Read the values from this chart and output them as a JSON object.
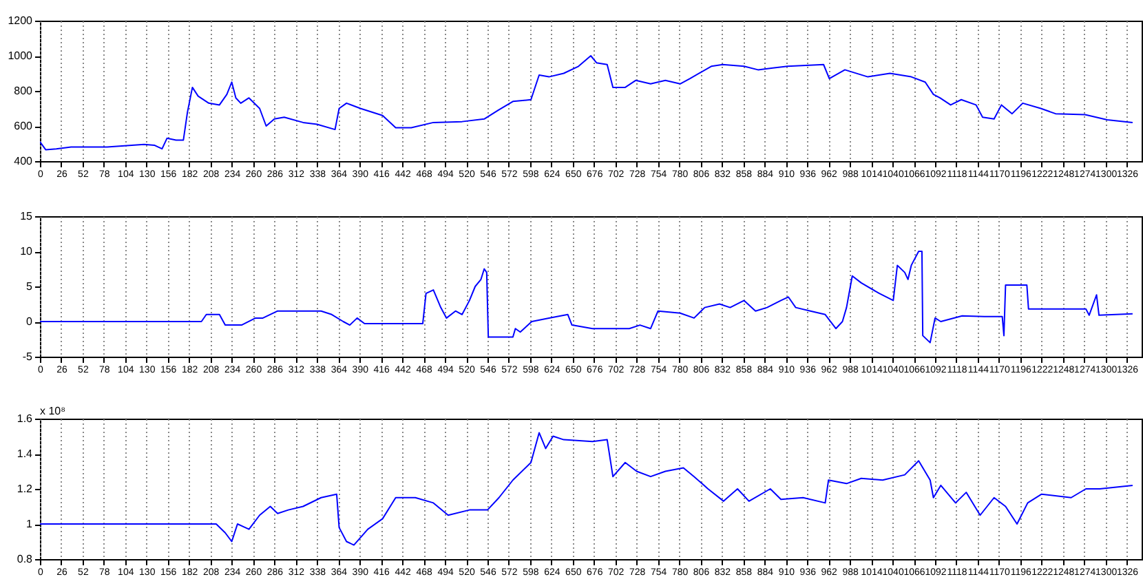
{
  "chart_data": [
    {
      "type": "line",
      "xlim": [
        0,
        1344
      ],
      "xticks": [
        0,
        26,
        52,
        78,
        104,
        130,
        156,
        182,
        208,
        234,
        260,
        286,
        312,
        338,
        364,
        390,
        416,
        442,
        468,
        494,
        520,
        546,
        572,
        598,
        624,
        650,
        676,
        702,
        728,
        754,
        780,
        806,
        832,
        858,
        884,
        910,
        936,
        962,
        988,
        1014,
        1040,
        1066,
        1092,
        1118,
        1144,
        1170,
        1196,
        1222,
        1248,
        1274,
        1300,
        1326
      ],
      "ylim": [
        400,
        1200
      ],
      "yticks": [
        400,
        600,
        800,
        1000,
        1200
      ],
      "grid": "x",
      "x": [
        0,
        7,
        20,
        38,
        82,
        127,
        140,
        149,
        155,
        166,
        175,
        180,
        186,
        193,
        206,
        219,
        228,
        234,
        239,
        245,
        255,
        268,
        276,
        286,
        298,
        321,
        338,
        360,
        365,
        374,
        391,
        418,
        434,
        453,
        480,
        515,
        542,
        559,
        577,
        599,
        609,
        621,
        639,
        657,
        672,
        679,
        692,
        699,
        714,
        727,
        745,
        763,
        781,
        793,
        819,
        833,
        859,
        876,
        894,
        912,
        956,
        963,
        982,
        1010,
        1037,
        1063,
        1080,
        1090,
        1098,
        1111,
        1124,
        1142,
        1150,
        1164,
        1173,
        1186,
        1199,
        1221,
        1239,
        1275,
        1302,
        1333
      ],
      "series": [
        {
          "color": "#0000ff",
          "values": [
            510,
            465,
            470,
            480,
            480,
            495,
            490,
            470,
            530,
            520,
            520,
            680,
            820,
            770,
            730,
            720,
            780,
            850,
            760,
            730,
            760,
            700,
            600,
            640,
            650,
            620,
            610,
            580,
            700,
            730,
            700,
            660,
            590,
            590,
            620,
            625,
            640,
            690,
            740,
            750,
            890,
            880,
            900,
            940,
            1000,
            960,
            950,
            820,
            820,
            860,
            840,
            860,
            840,
            870,
            940,
            950,
            940,
            920,
            930,
            940,
            950,
            870,
            920,
            880,
            900,
            880,
            850,
            780,
            760,
            720,
            750,
            720,
            650,
            640,
            720,
            670,
            730,
            700,
            670,
            665,
            635,
            620
          ]
        }
      ]
    },
    {
      "type": "line",
      "xlim": [
        0,
        1344
      ],
      "xticks": [
        0,
        26,
        52,
        78,
        104,
        130,
        156,
        182,
        208,
        234,
        260,
        286,
        312,
        338,
        364,
        390,
        416,
        442,
        468,
        494,
        520,
        546,
        572,
        598,
        624,
        650,
        676,
        702,
        728,
        754,
        780,
        806,
        832,
        858,
        884,
        910,
        936,
        962,
        988,
        1014,
        1040,
        1066,
        1092,
        1118,
        1144,
        1170,
        1196,
        1222,
        1248,
        1274,
        1300,
        1326
      ],
      "ylim": [
        -5,
        15
      ],
      "yticks": [
        -5,
        0,
        5,
        10,
        15
      ],
      "grid": "x",
      "x": [
        0,
        197,
        203,
        219,
        226,
        232,
        246,
        263,
        272,
        290,
        321,
        343,
        356,
        370,
        378,
        387,
        396,
        445,
        467,
        471,
        480,
        489,
        496,
        507,
        515,
        524,
        531,
        538,
        542,
        545,
        547,
        577,
        580,
        586,
        600,
        621,
        644,
        649,
        674,
        701,
        719,
        732,
        745,
        754,
        781,
        798,
        811,
        829,
        842,
        859,
        873,
        887,
        904,
        913,
        922,
        940,
        958,
        971,
        979,
        984,
        991,
        1002,
        1024,
        1041,
        1046,
        1055,
        1059,
        1063,
        1072,
        1076,
        1077,
        1086,
        1092,
        1099,
        1125,
        1152,
        1174,
        1176,
        1178,
        1204,
        1206,
        1276,
        1280,
        1289,
        1292,
        1333
      ],
      "series": [
        {
          "color": "#0000ff",
          "values": [
            0,
            0,
            1,
            1,
            -0.5,
            -0.5,
            -0.5,
            0.5,
            0.5,
            1.5,
            1.5,
            1.5,
            1,
            0,
            -0.5,
            0.5,
            -0.3,
            -0.3,
            -0.3,
            4,
            4.5,
            2,
            0.5,
            1.5,
            1,
            3,
            5,
            6,
            7.5,
            7,
            -2.2,
            -2.2,
            -1,
            -1.5,
            0,
            0.5,
            1,
            -0.5,
            -1,
            -1,
            -1,
            -0.5,
            -1,
            1.5,
            1.2,
            0.5,
            2,
            2.5,
            2,
            3,
            1.5,
            2,
            3,
            3.5,
            2,
            1.5,
            1,
            -1,
            0,
            2,
            6.5,
            5.5,
            4,
            3,
            8,
            7,
            6,
            8,
            10,
            10,
            -2,
            -3,
            0.5,
            0,
            0.8,
            0.7,
            0.7,
            -2,
            5.2,
            5.2,
            1.8,
            1.8,
            0.9,
            3.8,
            0.9,
            1.1
          ]
        }
      ]
    },
    {
      "type": "line",
      "xlim": [
        0,
        1344
      ],
      "xticks": [
        0,
        26,
        52,
        78,
        104,
        130,
        156,
        182,
        208,
        234,
        260,
        286,
        312,
        338,
        364,
        390,
        416,
        442,
        468,
        494,
        520,
        546,
        572,
        598,
        624,
        650,
        676,
        702,
        728,
        754,
        780,
        806,
        832,
        858,
        884,
        910,
        936,
        962,
        988,
        1014,
        1040,
        1066,
        1092,
        1118,
        1144,
        1170,
        1196,
        1222,
        1248,
        1274,
        1300,
        1326
      ],
      "ylim": [
        0.8,
        1.6
      ],
      "yticks": [
        0.8,
        1,
        1.2,
        1.4,
        1.6
      ],
      "grid": "x",
      "annotations": [
        "x 10⁸"
      ],
      "x": [
        0,
        215,
        226,
        234,
        241,
        255,
        268,
        281,
        290,
        303,
        321,
        343,
        362,
        365,
        374,
        383,
        400,
        418,
        434,
        458,
        480,
        498,
        524,
        546,
        560,
        577,
        599,
        609,
        617,
        626,
        639,
        674,
        692,
        699,
        714,
        728,
        745,
        763,
        785,
        798,
        815,
        834,
        851,
        865,
        891,
        904,
        931,
        958,
        962,
        984,
        1002,
        1028,
        1055,
        1072,
        1086,
        1090,
        1099,
        1117,
        1130,
        1147,
        1164,
        1178,
        1192,
        1205,
        1222,
        1258,
        1276,
        1293,
        1333
      ],
      "series": [
        {
          "color": "#0000ff",
          "values": [
            1,
            1,
            0.95,
            0.9,
            1,
            0.97,
            1.05,
            1.1,
            1.06,
            1.08,
            1.1,
            1.15,
            1.17,
            0.98,
            0.9,
            0.88,
            0.97,
            1.03,
            1.15,
            1.15,
            1.12,
            1.05,
            1.08,
            1.08,
            1.15,
            1.25,
            1.35,
            1.52,
            1.43,
            1.5,
            1.48,
            1.47,
            1.48,
            1.27,
            1.35,
            1.3,
            1.27,
            1.3,
            1.32,
            1.27,
            1.2,
            1.13,
            1.2,
            1.13,
            1.2,
            1.14,
            1.15,
            1.12,
            1.25,
            1.23,
            1.26,
            1.25,
            1.28,
            1.36,
            1.25,
            1.15,
            1.22,
            1.12,
            1.18,
            1.05,
            1.15,
            1.1,
            1,
            1.12,
            1.17,
            1.15,
            1.2,
            1.2,
            1.22
          ]
        }
      ]
    }
  ]
}
